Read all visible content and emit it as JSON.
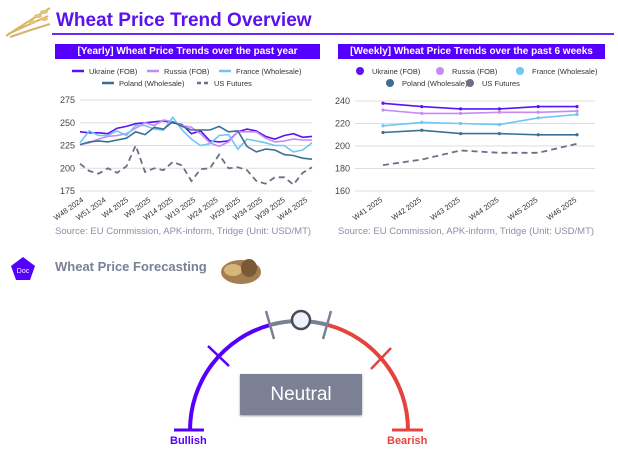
{
  "header": {
    "title": "Wheat Price Trend Overview"
  },
  "colors": {
    "accent": "#5500ff",
    "Ukraine": "#5b12f5",
    "Russia": "#c58bf5",
    "France": "#6ec6f5",
    "Poland": "#3d6f95",
    "US": "#6b7086",
    "bullish": "#5500ff",
    "bearish": "#e5433d",
    "neutral": "#7b8095"
  },
  "chart_data": [
    {
      "type": "line",
      "title": "[Yearly] Wheat Price Trends over the past year",
      "ylim": [
        175,
        275
      ],
      "yticks": [
        175,
        200,
        225,
        250,
        275
      ],
      "tick_labels": [
        "W48 2024",
        "W51 2024",
        "W4 2025",
        "W9 2025",
        "W14 2025",
        "W19 2025",
        "W24 2025",
        "W29 2025",
        "W34 2025",
        "W39 2025",
        "W44 2025"
      ],
      "legend": "top",
      "grid": true,
      "series": [
        {
          "name": "Ukraine (FOB)",
          "key": "Ukraine",
          "values": [
            240,
            239,
            239,
            238,
            244,
            246,
            249,
            250,
            251,
            252,
            250,
            248,
            238,
            241,
            230,
            229,
            230,
            240,
            243,
            241,
            235,
            232,
            236,
            238,
            234,
            235
          ]
        },
        {
          "name": "Russia (FOB)",
          "key": "Russia",
          "values": [
            226,
            228,
            232,
            235,
            236,
            238,
            244,
            250,
            247,
            253,
            251,
            247,
            245,
            238,
            228,
            224,
            229,
            240,
            240,
            240,
            233,
            229,
            230,
            232,
            231,
            231
          ]
        },
        {
          "name": "France (Wholesale)",
          "key": "France",
          "values": [
            228,
            241,
            236,
            236,
            241,
            236,
            247,
            247,
            243,
            242,
            256,
            242,
            232,
            225,
            227,
            236,
            237,
            221,
            232,
            230,
            228,
            225,
            225,
            218,
            220,
            228
          ]
        },
        {
          "name": "Poland (Wholesale)",
          "key": "Poland",
          "values": [
            226,
            229,
            230,
            229,
            231,
            233,
            240,
            237,
            245,
            243,
            251,
            246,
            242,
            242,
            242,
            246,
            240,
            241,
            224,
            218,
            221,
            220,
            215,
            214,
            211,
            210
          ]
        },
        {
          "name": "US Futures",
          "key": "US",
          "dashed": true,
          "values": [
            205,
            197,
            194,
            200,
            195,
            202,
            225,
            196,
            200,
            198,
            207,
            203,
            186,
            199,
            200,
            215,
            200,
            201,
            198,
            186,
            183,
            190,
            190,
            182,
            195,
            201
          ]
        }
      ],
      "source": "Source: EU Commission, APK-inform, Tridge   (Unit: USD/MT)"
    },
    {
      "type": "line",
      "title": "[Weekly] Wheat Price Trends over the past 6 weeks",
      "ylim": [
        160,
        240
      ],
      "yticks": [
        160,
        180,
        200,
        220,
        240
      ],
      "tick_labels": [
        "W41 2025",
        "W42 2025",
        "W43 2025",
        "W44 2025",
        "W45 2025",
        "W46 2025"
      ],
      "legend": "top",
      "grid": true,
      "series": [
        {
          "name": "Ukraine (FOB)",
          "key": "Ukraine",
          "values": [
            238,
            235,
            233,
            233,
            235,
            235
          ]
        },
        {
          "name": "Russia (FOB)",
          "key": "Russia",
          "values": [
            232,
            229,
            229,
            230,
            230,
            231
          ]
        },
        {
          "name": "France (Wholesale)",
          "key": "France",
          "values": [
            218,
            221,
            220,
            219,
            225,
            228
          ]
        },
        {
          "name": "Poland (Wholesale)",
          "key": "Poland",
          "values": [
            212,
            214,
            211,
            211,
            210,
            210
          ]
        },
        {
          "name": "US Futures",
          "key": "US",
          "dashed": true,
          "values": [
            183,
            188,
            196,
            194,
            194,
            202
          ]
        }
      ],
      "source": "Source: EU Commission, APK-inform, Tridge   (Unit: USD/MT)"
    }
  ],
  "forecast": {
    "icon_label": "Doc",
    "title": "Wheat Price Forecasting",
    "status": "Neutral",
    "left_label": "Bullish",
    "right_label": "Bearish"
  }
}
